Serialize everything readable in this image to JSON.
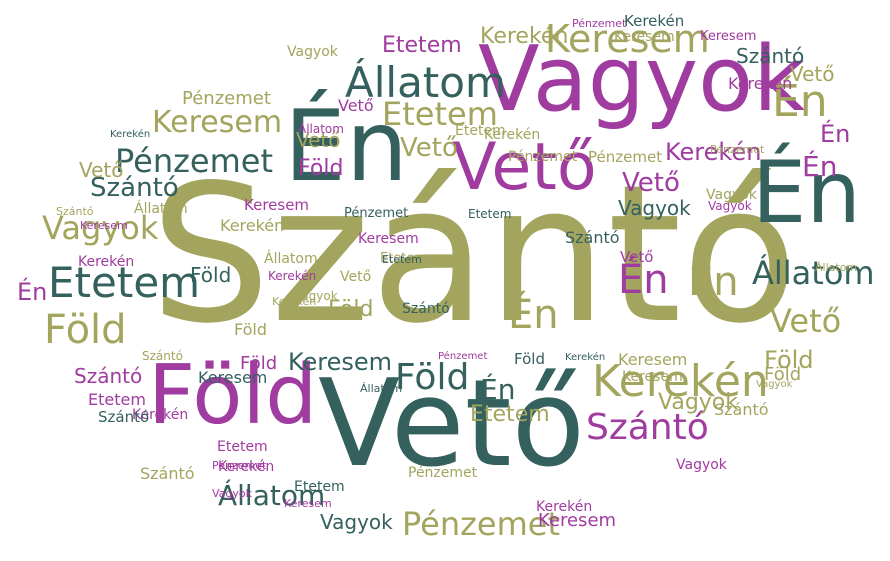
{
  "palette": {
    "olive": "#a3a55e",
    "purple": "#a03ba0",
    "teal": "#34605e",
    "background": "#ffffff"
  },
  "words": [
    {
      "text": "Szántó",
      "color": "olive"
    },
    {
      "text": "Vető",
      "color": "teal"
    },
    {
      "text": "Vagyok",
      "color": "purple"
    },
    {
      "text": "Én",
      "color": "teal"
    },
    {
      "text": "Én",
      "color": "teal"
    },
    {
      "text": "Föld",
      "color": "purple"
    },
    {
      "text": "Vető",
      "color": "purple"
    },
    {
      "text": "Állatom",
      "color": "teal"
    },
    {
      "text": "Keresem",
      "color": "olive"
    },
    {
      "text": "Kerekén",
      "color": "olive"
    },
    {
      "text": "Én",
      "color": "olive"
    },
    {
      "text": "Etetem",
      "color": "teal"
    },
    {
      "text": "Föld",
      "color": "olive"
    },
    {
      "text": "Pénzemet",
      "color": "teal"
    },
    {
      "text": "Vagyok",
      "color": "olive"
    },
    {
      "text": "Szántó",
      "color": "purple"
    },
    {
      "text": "Pénzemet",
      "color": "olive"
    },
    {
      "text": "Etetem",
      "color": "olive"
    },
    {
      "text": "Keresem",
      "color": "olive"
    },
    {
      "text": "Etetem",
      "color": "purple"
    },
    {
      "text": "Kerekén",
      "color": "olive"
    },
    {
      "text": "Keresem",
      "color": "teal"
    },
    {
      "text": "Föld",
      "color": "teal"
    },
    {
      "text": "Állatom",
      "color": "teal"
    },
    {
      "text": "Kerekén",
      "color": "purple"
    },
    {
      "text": "Szántó",
      "color": "teal"
    },
    {
      "text": "Én",
      "color": "purple"
    },
    {
      "text": "Én",
      "color": "purple"
    },
    {
      "text": "Én",
      "color": "purple"
    },
    {
      "text": "Vető",
      "color": "olive"
    },
    {
      "text": "Vető",
      "color": "purple"
    },
    {
      "text": "Vagyok",
      "color": "olive"
    },
    {
      "text": "Vagyok",
      "color": "teal"
    },
    {
      "text": "Föld",
      "color": "teal"
    },
    {
      "text": "Vető",
      "color": "olive"
    },
    {
      "text": "Föld",
      "color": "olive"
    },
    {
      "text": "Szántó",
      "color": "teal"
    },
    {
      "text": "Én",
      "color": "olive"
    },
    {
      "text": "Én",
      "color": "olive"
    },
    {
      "text": "Vető",
      "color": "olive"
    },
    {
      "text": "Föld",
      "color": "purple"
    },
    {
      "text": "Én",
      "color": "teal"
    },
    {
      "text": "Állatom",
      "color": "teal"
    },
    {
      "text": "Keresem",
      "color": "purple"
    },
    {
      "text": "Szántó",
      "color": "purple"
    },
    {
      "text": "Kerekén",
      "color": "purple"
    },
    {
      "text": "Pénzemet",
      "color": "olive"
    },
    {
      "text": "Vagyok",
      "color": "teal"
    },
    {
      "text": "Keresem",
      "color": "purple"
    },
    {
      "text": "Etetem",
      "color": "olive"
    },
    {
      "text": "Kerekén",
      "color": "teal"
    },
    {
      "text": "Állatom",
      "color": "olive"
    },
    {
      "text": "Etetem",
      "color": "olive"
    },
    {
      "text": "Szántó",
      "color": "teal"
    },
    {
      "text": "Vető",
      "color": "purple"
    },
    {
      "text": "Szántó",
      "color": "olive"
    },
    {
      "text": "Etetem",
      "color": "purple"
    },
    {
      "text": "Pénzemet",
      "color": "purple"
    },
    {
      "text": "Kerekén",
      "color": "purple"
    },
    {
      "text": "Etetem",
      "color": "olive"
    },
    {
      "text": "Vető",
      "color": "olive"
    },
    {
      "text": "Pénzemet",
      "color": "olive"
    },
    {
      "text": "Vagyok",
      "color": "olive"
    },
    {
      "text": "Keresem",
      "color": "purple"
    },
    {
      "text": "Vető",
      "color": "olive"
    },
    {
      "text": "Én",
      "color": "purple"
    },
    {
      "text": "Föld",
      "color": "olive"
    },
    {
      "text": "Állatom",
      "color": "olive"
    },
    {
      "text": "Kerekén",
      "color": "purple"
    },
    {
      "text": "Kerekén",
      "color": "purple"
    },
    {
      "text": "Kerekén",
      "color": "olive"
    },
    {
      "text": "Állatom",
      "color": "purple"
    },
    {
      "text": "Föld",
      "color": "purple"
    },
    {
      "text": "Föld",
      "color": "olive"
    },
    {
      "text": "Keresem",
      "color": "teal"
    },
    {
      "text": "Pénzemet",
      "color": "teal"
    },
    {
      "text": "Etetem",
      "color": "teal"
    },
    {
      "text": "Keresem",
      "color": "olive"
    },
    {
      "text": "Keresem",
      "color": "purple"
    },
    {
      "text": "Kerekén",
      "color": "teal"
    },
    {
      "text": "Vagyok",
      "color": "olive"
    },
    {
      "text": "Kerekén",
      "color": "olive"
    },
    {
      "text": "Pénzemet",
      "color": "olive"
    },
    {
      "text": "Vagyok",
      "color": "purple"
    },
    {
      "text": "Pénzemet",
      "color": "purple"
    },
    {
      "text": "Szántó",
      "color": "olive"
    },
    {
      "text": "Szántó",
      "color": "olive"
    },
    {
      "text": "Szántó",
      "color": "teal"
    },
    {
      "text": "Szántó",
      "color": "teal"
    },
    {
      "text": "Etetem",
      "color": "purple"
    },
    {
      "text": "Etetem",
      "color": "teal"
    },
    {
      "text": "Kerekén",
      "color": "purple"
    },
    {
      "text": "Állatom",
      "color": "olive"
    },
    {
      "text": "Kerekén",
      "color": "teal"
    },
    {
      "text": "Vagyok",
      "color": "olive"
    },
    {
      "text": "Vagyok",
      "color": "purple"
    },
    {
      "text": "Pénzemet",
      "color": "olive"
    },
    {
      "text": "Föld",
      "color": "olive"
    },
    {
      "text": "Keresem",
      "color": "olive"
    },
    {
      "text": "Keresem",
      "color": "purple"
    },
    {
      "text": "Pénzemet",
      "color": "purple"
    },
    {
      "text": "Etetem",
      "color": "teal"
    },
    {
      "text": "Állatom",
      "color": "teal"
    },
    {
      "text": "Kerekén",
      "color": "olive"
    },
    {
      "text": "Szántó",
      "color": "olive"
    },
    {
      "text": "Vagyok",
      "color": "purple"
    },
    {
      "text": "Vagyok",
      "color": "olive"
    },
    {
      "text": "Vető",
      "color": "olive"
    },
    {
      "text": "Vető",
      "color": "purple"
    },
    {
      "text": "Kerekén",
      "color": "purple"
    },
    {
      "text": "Keresem",
      "color": "purple"
    },
    {
      "text": "Keresem",
      "color": "olive"
    },
    {
      "text": "Pénzemet",
      "color": "olive"
    },
    {
      "text": "Föld",
      "color": "teal"
    }
  ]
}
